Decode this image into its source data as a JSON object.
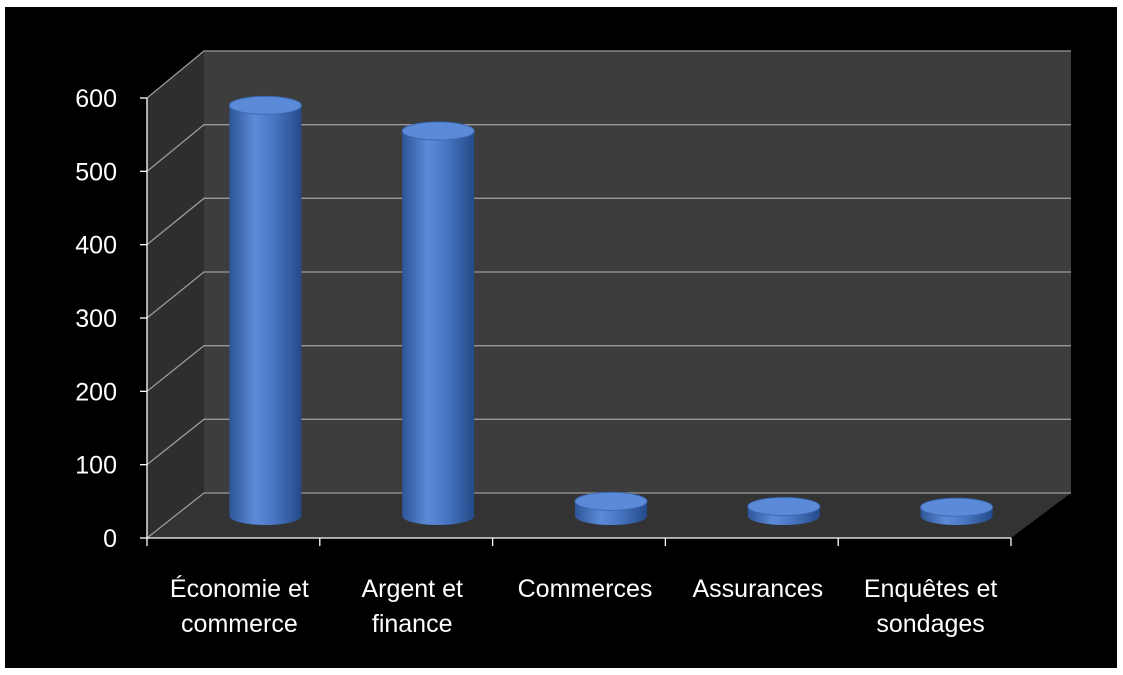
{
  "chart_data": {
    "type": "bar",
    "title": "",
    "xlabel": "",
    "ylabel": "",
    "categories": [
      [
        "Économie et",
        "commerce"
      ],
      [
        "Argent et",
        "finance"
      ],
      [
        "Commerces"
      ],
      [
        "Assurances"
      ],
      [
        "Enquêtes et",
        "sondages"
      ]
    ],
    "series": [
      {
        "values": [
          560,
          525,
          20,
          13,
          12
        ]
      }
    ],
    "ylim": [
      0,
      600
    ],
    "yticks": [
      "0",
      "100",
      "200",
      "300",
      "400",
      "500",
      "600"
    ],
    "grid": true,
    "legend": "none",
    "style": "3d-cylinder",
    "colors": {
      "background": "#000000",
      "bar": "#4472C4",
      "bar_top": "#5B8BD8",
      "back_wall": "#3d3d3d",
      "side_wall": "#2e2e2e",
      "floor": "#333333",
      "gridline": "#9a9a9a",
      "text": "#ffffff"
    }
  }
}
